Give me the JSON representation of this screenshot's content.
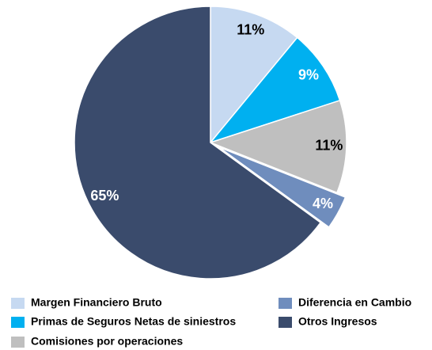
{
  "chart_data": {
    "type": "pie",
    "categories": [
      "Margen Financiero Bruto",
      "Primas de Seguros Netas de siniestros",
      "Comisiones por operaciones",
      "Diferencia en Cambio",
      "Otros Ingresos"
    ],
    "values": [
      11,
      9,
      11,
      4,
      65
    ],
    "value_labels": [
      "11%",
      "9%",
      "11%",
      "4%",
      "65%"
    ],
    "colors": [
      "#c6d9f1",
      "#00b0f0",
      "#bfbfbf",
      "#6f8dbd",
      "#3a4b6c"
    ]
  }
}
